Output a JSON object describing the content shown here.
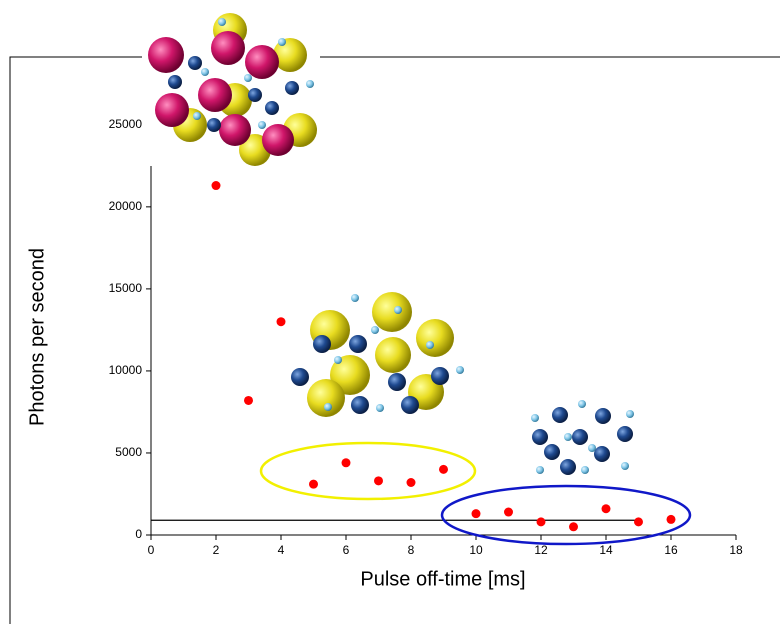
{
  "chart_data": {
    "type": "scatter",
    "x_label": "Pulse off-time [ms]",
    "y_label": "Photons per second",
    "x": [
      2,
      3,
      4,
      5,
      6,
      7,
      8,
      9,
      10,
      11,
      12,
      13,
      14,
      15,
      16
    ],
    "values": [
      21300,
      8200,
      13000,
      3100,
      4400,
      3300,
      3200,
      4000,
      1300,
      1400,
      800,
      500,
      1600,
      800,
      950
    ],
    "color": "#ff0000",
    "xlim": [
      0,
      18
    ],
    "xticks": [
      0,
      2,
      4,
      6,
      8,
      10,
      12,
      14,
      16,
      18
    ],
    "ylim": [
      0,
      27000
    ],
    "yticks": [
      0,
      5000,
      10000,
      15000,
      20000,
      25000
    ],
    "hline": {
      "y": 900,
      "x_end": 15
    }
  }
}
